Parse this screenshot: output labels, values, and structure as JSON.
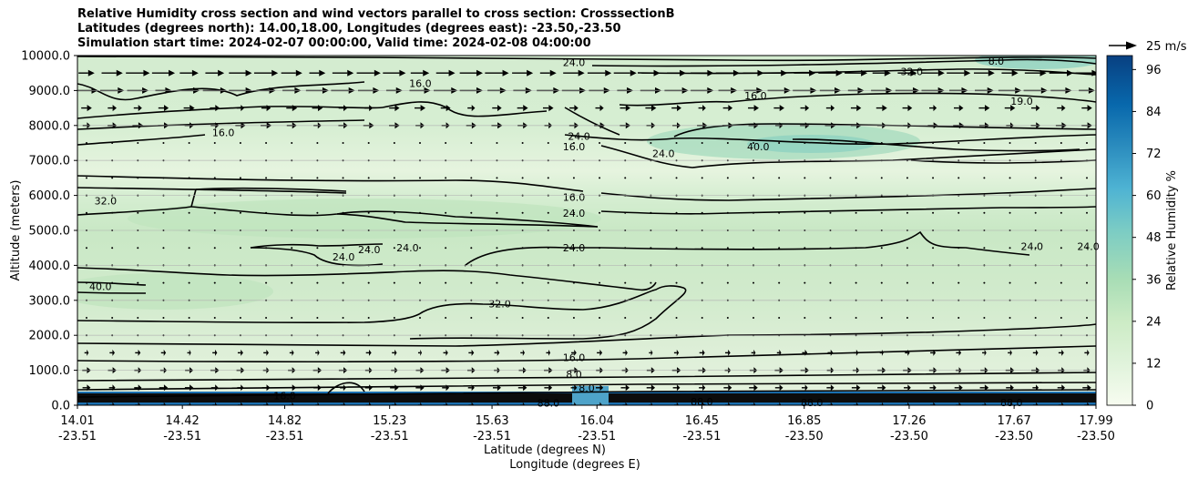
{
  "chart_data": {
    "type": "heatmap",
    "title_lines": [
      "Relative Humidity cross section and wind vectors parallel to cross section: CrosssectionB",
      "Latitudes (degrees north): 14.00,18.00, Longitudes (degrees east): -23.50,-23.50",
      "Simulation start time: 2024-02-07 00:00:00, Valid time: 2024-02-08 04:00:00"
    ],
    "ylabel": "Altitude (meters)",
    "xlabel": "Latitude (degrees N)",
    "xlabel2": "Longitude (degrees E)",
    "ylim": [
      0,
      10000
    ],
    "y_ticks": [
      "0.0",
      "1000.0",
      "2000.0",
      "3000.0",
      "4000.0",
      "5000.0",
      "6000.0",
      "7000.0",
      "8000.0",
      "9000.0",
      "10000.0"
    ],
    "x_ticks": [
      {
        "lat": "14.01",
        "lon": "-23.51"
      },
      {
        "lat": "14.42",
        "lon": "-23.51"
      },
      {
        "lat": "14.82",
        "lon": "-23.51"
      },
      {
        "lat": "15.23",
        "lon": "-23.51"
      },
      {
        "lat": "15.63",
        "lon": "-23.51"
      },
      {
        "lat": "16.04",
        "lon": "-23.51"
      },
      {
        "lat": "16.45",
        "lon": "-23.51"
      },
      {
        "lat": "16.85",
        "lon": "-23.50"
      },
      {
        "lat": "17.26",
        "lon": "-23.50"
      },
      {
        "lat": "17.67",
        "lon": "-23.50"
      },
      {
        "lat": "17.99",
        "lon": "-23.50"
      }
    ],
    "colorbar": {
      "label": "Relative Humidity %",
      "range": [
        0,
        100
      ],
      "tick_labels": [
        "0",
        "12",
        "24",
        "36",
        "48",
        "60",
        "72",
        "84",
        "96"
      ]
    },
    "wind_reference": "25 m/s",
    "contour_labels": [
      {
        "text": "24.0",
        "lat": 15.95,
        "alt": 9800
      },
      {
        "text": "32.0",
        "lat": 17.27,
        "alt": 9550
      },
      {
        "text": "8.0",
        "lat": 17.6,
        "alt": 9850
      },
      {
        "text": "16.0",
        "lat": 15.35,
        "alt": 9200
      },
      {
        "text": "16.0",
        "lat": 16.66,
        "alt": 8850
      },
      {
        "text": "19.0",
        "lat": 17.7,
        "alt": 8700
      },
      {
        "text": "16.0",
        "lat": 14.58,
        "alt": 7800
      },
      {
        "text": "24.0",
        "lat": 15.97,
        "alt": 7700
      },
      {
        "text": "16.0",
        "lat": 15.95,
        "alt": 7400
      },
      {
        "text": "24.0",
        "lat": 16.3,
        "alt": 7200
      },
      {
        "text": "40.0",
        "lat": 16.67,
        "alt": 7400
      },
      {
        "text": "32.0",
        "lat": 14.12,
        "alt": 5850
      },
      {
        "text": "16.0",
        "lat": 15.95,
        "alt": 5950
      },
      {
        "text": "24.0",
        "lat": 15.95,
        "alt": 5500
      },
      {
        "text": "24.0",
        "lat": 15.3,
        "alt": 4500
      },
      {
        "text": "24.0",
        "lat": 15.95,
        "alt": 4500
      },
      {
        "text": "24.0",
        "lat": 17.74,
        "alt": 4550
      },
      {
        "text": "24.0",
        "lat": 17.96,
        "alt": 4550
      },
      {
        "text": "24.0",
        "lat": 15.05,
        "alt": 4250
      },
      {
        "text": "24.0",
        "lat": 15.15,
        "alt": 4450
      },
      {
        "text": "40.0",
        "lat": 14.1,
        "alt": 3400
      },
      {
        "text": "32.0",
        "lat": 15.66,
        "alt": 2900
      },
      {
        "text": "16.0",
        "lat": 15.95,
        "alt": 1370
      },
      {
        "text": "8.0",
        "lat": 15.95,
        "alt": 880
      },
      {
        "text": "8.0",
        "lat": 16.0,
        "alt": 500
      },
      {
        "text": "16.0",
        "lat": 14.82,
        "alt": 270
      },
      {
        "text": "88.0",
        "lat": 15.85,
        "alt": 60
      },
      {
        "text": "88.0",
        "lat": 16.45,
        "alt": 100
      },
      {
        "text": "88.0",
        "lat": 16.88,
        "alt": 80
      },
      {
        "text": "88.0",
        "lat": 17.66,
        "alt": 80
      }
    ]
  }
}
